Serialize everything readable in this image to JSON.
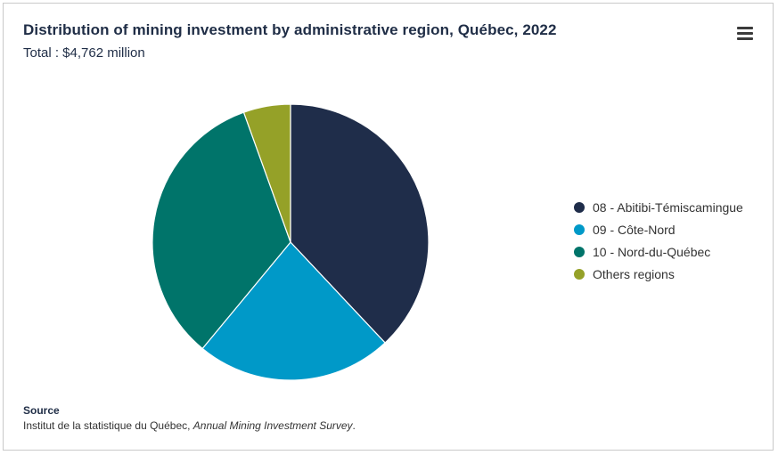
{
  "chart_data": {
    "type": "pie",
    "title": "Distribution of mining investment by administrative region, Québec, 2022",
    "subtitle": "Total : $4,762 million",
    "slices": [
      {
        "name": "08 - Abitibi-Témiscamingue",
        "value": 38,
        "color": "#1f2d4a"
      },
      {
        "name": "09 - Côte-Nord",
        "value": 23,
        "color": "#0099c8"
      },
      {
        "name": "10 - Nord-du-Québec",
        "value": 33.5,
        "color": "#00746a"
      },
      {
        "name": "Others regions",
        "value": 5.5,
        "color": "#95a128"
      }
    ],
    "legend_position": "right"
  },
  "menu_icon": "hamburger-menu-icon",
  "source": {
    "heading": "Source",
    "prefix": "Institut de la statistique du Québec, ",
    "title": "Annual Mining Investment Survey",
    "suffix": "."
  }
}
